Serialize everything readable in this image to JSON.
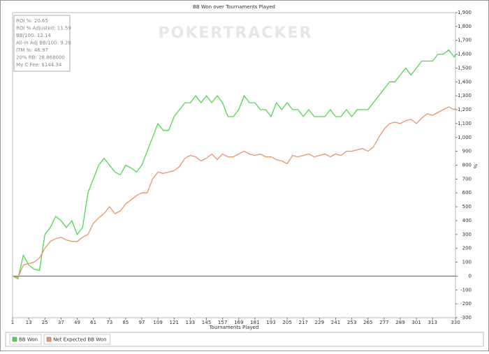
{
  "chart_data": {
    "type": "line",
    "title": "BB Won over Tournaments Played",
    "x_label": "Tournaments Played",
    "y_label": "%",
    "watermark": "POKERTRACKER",
    "stats": [
      "ROI %: 20.65",
      "ROI % Adjusted: 11.59",
      "BB/100: 12.14",
      "All-In Adj BB/100: 9.20",
      "ITM %: 46.97",
      "20% RB: 28.868000",
      "My C Fee: $144.34"
    ],
    "x": [
      1,
      5,
      9,
      13,
      17,
      21,
      25,
      29,
      33,
      37,
      41,
      45,
      49,
      53,
      57,
      61,
      65,
      69,
      73,
      77,
      81,
      85,
      89,
      93,
      97,
      101,
      105,
      109,
      113,
      117,
      121,
      125,
      129,
      133,
      137,
      141,
      145,
      149,
      153,
      157,
      161,
      165,
      169,
      173,
      177,
      181,
      185,
      189,
      193,
      197,
      201,
      205,
      209,
      213,
      217,
      221,
      225,
      229,
      233,
      237,
      241,
      245,
      249,
      253,
      257,
      261,
      265,
      269,
      273,
      277,
      281,
      285,
      289,
      293,
      297,
      301,
      305,
      309,
      313,
      317,
      321,
      325,
      329,
      330
    ],
    "series": [
      {
        "name": "BB Won",
        "color": "#4fd84f",
        "values": [
          0,
          -20,
          150,
          80,
          50,
          40,
          300,
          350,
          430,
          400,
          350,
          400,
          300,
          350,
          600,
          700,
          800,
          850,
          800,
          750,
          730,
          800,
          780,
          750,
          800,
          900,
          1000,
          1100,
          1050,
          1050,
          1150,
          1200,
          1250,
          1250,
          1300,
          1250,
          1300,
          1250,
          1300,
          1250,
          1150,
          1150,
          1200,
          1300,
          1250,
          1250,
          1200,
          1200,
          1150,
          1250,
          1200,
          1250,
          1200,
          1200,
          1150,
          1200,
          1150,
          1150,
          1150,
          1200,
          1150,
          1150,
          1200,
          1150,
          1200,
          1200,
          1200,
          1250,
          1300,
          1350,
          1400,
          1400,
          1450,
          1500,
          1450,
          1500,
          1550,
          1550,
          1550,
          1600,
          1600,
          1630,
          1580,
          1600
        ]
      },
      {
        "name": "Net Expected BB Won",
        "color": "#e8946a",
        "values": [
          0,
          -10,
          80,
          90,
          100,
          130,
          200,
          250,
          270,
          280,
          260,
          250,
          250,
          280,
          300,
          380,
          420,
          450,
          500,
          450,
          470,
          520,
          550,
          580,
          600,
          600,
          700,
          750,
          740,
          750,
          760,
          790,
          850,
          870,
          860,
          830,
          850,
          880,
          840,
          880,
          860,
          860,
          880,
          900,
          880,
          870,
          880,
          860,
          860,
          840,
          830,
          810,
          870,
          860,
          870,
          880,
          860,
          870,
          880,
          860,
          880,
          870,
          900,
          900,
          910,
          920,
          900,
          930,
          1000,
          1060,
          1100,
          1110,
          1100,
          1120,
          1130,
          1100,
          1140,
          1170,
          1160,
          1180,
          1200,
          1220,
          1200,
          1210
        ]
      }
    ],
    "xlim": [
      1,
      330
    ],
    "xticks": [
      1,
      13,
      25,
      37,
      49,
      61,
      73,
      85,
      97,
      109,
      121,
      133,
      145,
      157,
      169,
      181,
      193,
      205,
      217,
      229,
      241,
      253,
      265,
      277,
      289,
      301,
      313,
      330
    ],
    "ylim": [
      -300,
      1900
    ],
    "yticks": [
      -300,
      -200,
      -100,
      0,
      100,
      200,
      300,
      400,
      500,
      600,
      700,
      800,
      900,
      {
        "value": 1000,
        "label": "1,000"
      },
      {
        "value": 1100,
        "label": "1,100"
      },
      {
        "value": 1200,
        "label": "1,200"
      },
      {
        "value": 1300,
        "label": "1,300"
      },
      {
        "value": 1400,
        "label": "1,400"
      },
      {
        "value": 1500,
        "label": "1,500"
      },
      {
        "value": 1600,
        "label": "1,600"
      },
      {
        "value": 1700,
        "label": "1,700"
      },
      {
        "value": 1800,
        "label": "1,800"
      },
      {
        "value": 1900,
        "label": "1,900"
      }
    ],
    "zero_line": true,
    "legend": "bottom-left"
  }
}
